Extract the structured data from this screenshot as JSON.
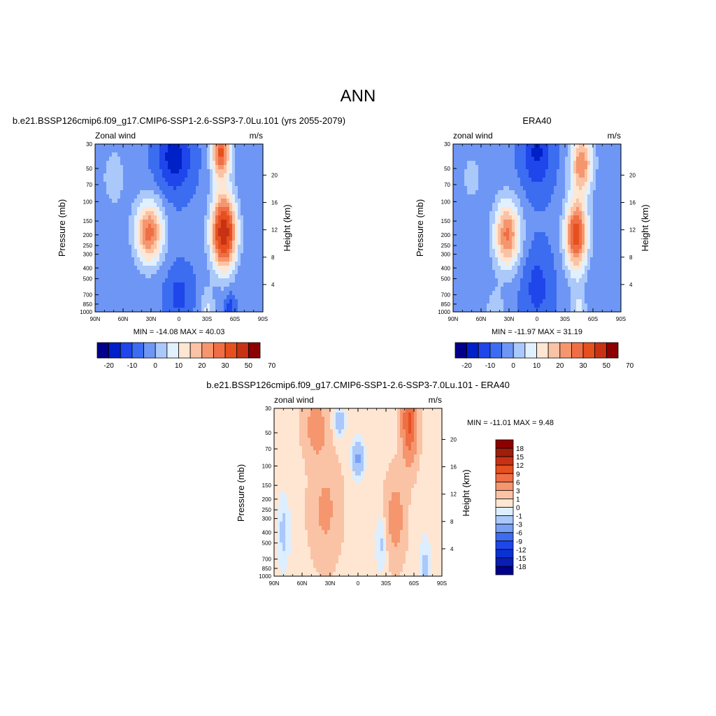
{
  "page_title": "ANN",
  "colors": {
    "diverging_12": [
      "#00008b",
      "#0020c8",
      "#1e46eb",
      "#3c6cf0",
      "#6e96f5",
      "#aac8fa",
      "#e1f0ff",
      "#ffe6d2",
      "#fac3a5",
      "#f5966e",
      "#f06e46",
      "#e6501e",
      "#c83214",
      "#8c0000"
    ]
  },
  "panels": [
    {
      "id": "model",
      "title": "b.e21.BSSP126cmip6.f09_g17.CMIP6-SSP1-2.6-SSP3-7.0Lu.101 (yrs 2055-2079)",
      "left_label": "Zonal wind",
      "right_label": "m/s",
      "y_label": "Pressure (mb)",
      "y2_label": "Height (km)",
      "stats": "MIN = -14.08  MAX =  40.03",
      "colorbar_labels": [
        "-20",
        "-10",
        "0",
        "10",
        "20",
        "30",
        "50",
        "70"
      ]
    },
    {
      "id": "obs",
      "title": "ERA40",
      "left_label": "zonal wind",
      "right_label": "m/s",
      "y_label": "Pressure (mb)",
      "y2_label": "Height (km)",
      "stats": "MIN = -11.97  MAX =  31.19",
      "colorbar_labels": [
        "-20",
        "-10",
        "0",
        "10",
        "20",
        "30",
        "50",
        "70"
      ]
    },
    {
      "id": "diff",
      "title": "b.e21.BSSP126cmip6.f09_g17.CMIP6-SSP1-2.6-SSP3-7.0Lu.101 - ERA40",
      "left_label": "zonal wind",
      "right_label": "m/s",
      "y_label": "Pressure (mb)",
      "y2_label": "Height (km)",
      "stats": "MIN = -11.01  MAX =   9.48",
      "colorbar_labels": [
        "18",
        "15",
        "12",
        "9",
        "6",
        "3",
        "1",
        "0",
        "-1",
        "-3",
        "-6",
        "-9",
        "-12",
        "-15",
        "-18"
      ]
    }
  ],
  "chart_data": [
    {
      "type": "heatmap",
      "panel": "model",
      "x_ticks": [
        "90N",
        "60N",
        "30N",
        "0",
        "30S",
        "60S",
        "90S"
      ],
      "y_ticks": [
        "30",
        "50",
        "70",
        "100",
        "150",
        "200",
        "250",
        "300",
        "400",
        "500",
        "700",
        "850",
        "1000"
      ],
      "y2_ticks": [
        "20",
        "16",
        "12",
        "8",
        "4"
      ],
      "xlim": [
        90,
        -90
      ],
      "ylim_mb": [
        1000,
        30
      ],
      "y_scale": "log",
      "levels": [
        -20,
        -15,
        -10,
        -5,
        0,
        5,
        10,
        15,
        20,
        25,
        30,
        40,
        50,
        60,
        70
      ],
      "min": -14.08,
      "max": 40.03,
      "features": [
        {
          "kind": "westerly_jet",
          "lat": 32,
          "p_mb": 190,
          "peak_ms": 27
        },
        {
          "kind": "westerly_jet",
          "lat": -48,
          "p_mb": 190,
          "peak_ms": 40
        },
        {
          "kind": "easterlies",
          "lat": 5,
          "p_mb": 40,
          "peak_ms": -14
        }
      ]
    },
    {
      "type": "heatmap",
      "panel": "obs",
      "x_ticks": [
        "90N",
        "60N",
        "30N",
        "0",
        "30S",
        "60S",
        "90S"
      ],
      "y_ticks": [
        "30",
        "50",
        "70",
        "100",
        "150",
        "200",
        "250",
        "300",
        "400",
        "500",
        "700",
        "850",
        "1000"
      ],
      "y2_ticks": [
        "20",
        "16",
        "12",
        "8",
        "4"
      ],
      "xlim": [
        90,
        -90
      ],
      "ylim_mb": [
        1000,
        30
      ],
      "y_scale": "log",
      "levels": [
        -20,
        -15,
        -10,
        -5,
        0,
        5,
        10,
        15,
        20,
        25,
        30,
        40,
        50,
        60,
        70
      ],
      "min": -11.97,
      "max": 31.19,
      "features": [
        {
          "kind": "westerly_jet",
          "lat": 32,
          "p_mb": 200,
          "peak_ms": 25
        },
        {
          "kind": "westerly_jet",
          "lat": -42,
          "p_mb": 200,
          "peak_ms": 31
        },
        {
          "kind": "easterlies",
          "lat": 0,
          "p_mb": 35,
          "peak_ms": -12
        }
      ]
    },
    {
      "type": "heatmap",
      "panel": "diff",
      "x_ticks": [
        "90N",
        "60N",
        "30N",
        "0",
        "30S",
        "60S",
        "90S"
      ],
      "y_ticks": [
        "30",
        "50",
        "70",
        "100",
        "150",
        "200",
        "250",
        "300",
        "400",
        "500",
        "700",
        "850",
        "1000"
      ],
      "y2_ticks": [
        "20",
        "16",
        "12",
        "8",
        "4"
      ],
      "xlim": [
        90,
        -90
      ],
      "ylim_mb": [
        1000,
        30
      ],
      "y_scale": "log",
      "levels": [
        -18,
        -15,
        -12,
        -9,
        -6,
        -3,
        -1,
        0,
        1,
        3,
        6,
        9,
        12,
        15,
        18
      ],
      "min": -11.01,
      "max": 9.48,
      "features": [
        {
          "kind": "positive",
          "lat": -55,
          "p_mb": 40,
          "peak_ms": 9
        },
        {
          "kind": "positive",
          "lat": 45,
          "p_mb": 40,
          "peak_ms": 4
        },
        {
          "kind": "negative",
          "lat": 0,
          "p_mb": 80,
          "peak_ms": -4
        },
        {
          "kind": "negative",
          "lat": 80,
          "p_mb": 400,
          "peak_ms": -2
        }
      ]
    }
  ]
}
